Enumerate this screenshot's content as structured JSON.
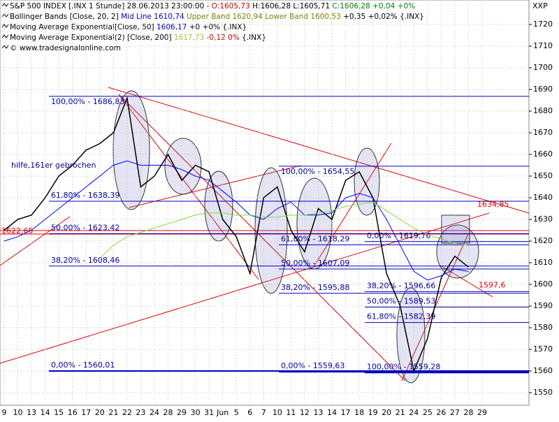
{
  "chart_data": {
    "type": "line",
    "header": [
      [
        {
          "text": "S&P 500 INDEX [.INX  1 Stunde] 28.06.2013 23:00:00 - ",
          "color": "#000000"
        },
        {
          "text": "O:1605,73",
          "color": "#c00000"
        },
        {
          "text": " H:1606,28 L:1605,71 ",
          "color": "#000000"
        },
        {
          "text": "C:1606,28 +0,04 +0%",
          "color": "#008000"
        }
      ],
      [
        {
          "text": "Bollinger Bands [Close, 20, 2] ",
          "color": "#000000"
        },
        {
          "text": "Mid Line 1610,74",
          "color": "#0000c0"
        },
        {
          "text": " Upper Band 1620,94 Lower Band 1600,53",
          "color": "#808000"
        },
        {
          "text": " +0,35 +0,02% {.INX}",
          "color": "#000000"
        }
      ],
      [
        {
          "text": "Moving Average Exponential[Close, 50] ",
          "color": "#000000"
        },
        {
          "text": "1606,17",
          "color": "#0000c0"
        },
        {
          "text": " +0 +0% {.INX}",
          "color": "#000000"
        }
      ],
      [
        {
          "text": "Moving Average Exponential(2) [Close, 200] ",
          "color": "#000000"
        },
        {
          "text": "1617,73",
          "color": "#9acd32"
        },
        {
          "text": " -0,12 0%",
          "color": "#c00000"
        },
        {
          "text": " {.INX}",
          "color": "#000000"
        }
      ],
      [
        {
          "text": "© www.tradesignalonline.com",
          "color": "#000000"
        }
      ]
    ],
    "axis_title": "XXP",
    "categories": [
      "9",
      "10",
      "13",
      "14",
      "15",
      "16",
      "17",
      "20",
      "21",
      "22",
      "23",
      "24",
      "28",
      "29",
      "30",
      "31",
      "Jun",
      "5",
      "6",
      "7",
      "10",
      "11",
      "12",
      "13",
      "14",
      "17",
      "18",
      "19",
      "20",
      "21",
      "24",
      "25",
      "26",
      "27",
      "28",
      "29"
    ],
    "series": [
      {
        "name": "S&P 500 INDEX",
        "color": "#000000",
        "values": [
          1625,
          1630,
          1632,
          1640,
          1650,
          1655,
          1662,
          1665,
          1670,
          1686,
          1645,
          1650,
          1660,
          1648,
          1655,
          1652,
          1630,
          1622,
          1605,
          1640,
          1645,
          1625,
          1615,
          1635,
          1630,
          1648,
          1652,
          1640,
          1605,
          1590,
          1560,
          1575,
          1603,
          1613,
          1608,
          null
        ]
      },
      {
        "name": "EMA 50",
        "color": "#0000ff",
        "values": [
          1620,
          1622,
          1625,
          1630,
          1635,
          1640,
          1645,
          1650,
          1655,
          1657,
          1655,
          1655,
          1655,
          1653,
          1650,
          1648,
          1643,
          1638,
          1632,
          1630,
          1635,
          1638,
          1632,
          1632,
          1633,
          1640,
          1642,
          1640,
          1630,
          1618,
          1606,
          1602,
          1604,
          1607,
          1606,
          null
        ]
      },
      {
        "name": "EMA 200",
        "color": "#7fdc3c",
        "values": [
          null,
          null,
          null,
          null,
          null,
          null,
          null,
          1612,
          1618,
          1622,
          1624,
          1626,
          1628,
          1630,
          1632,
          1633,
          1633,
          1632,
          1632,
          1631,
          1631,
          1632,
          1632,
          1633,
          1634,
          1636,
          1637,
          1638,
          1634,
          1630,
          1626,
          1623,
          1621,
          1619,
          1618,
          null
        ]
      }
    ],
    "fib_levels": [
      {
        "value": 1686.83,
        "label": "100,00% - 1686,83"
      },
      {
        "value": 1638.39,
        "label": "61,80% - 1638,39"
      },
      {
        "value": 1623.42,
        "label": "50,00% - 1623,42"
      },
      {
        "value": 1608.46,
        "label": "38,20% - 1608,46"
      },
      {
        "value": 1560.01,
        "label": "0,00% - 1560,01"
      },
      {
        "value": 1654.55,
        "label": "100,00% - 1654,55"
      },
      {
        "value": 1618.29,
        "label": "61,80% - 1618,29"
      },
      {
        "value": 1607.09,
        "label": "50,00% - 1607,09"
      },
      {
        "value": 1595.88,
        "label": "38,20% - 1595,88"
      },
      {
        "value": 1559.63,
        "label": "0,00% - 1559,63"
      },
      {
        "value": 1619.76,
        "label": "0,00% - 1619,76"
      },
      {
        "value": 1596.66,
        "label": "38,20% - 1596,66"
      },
      {
        "value": 1589.53,
        "label": "50,00% - 1589,53"
      },
      {
        "value": 1582.39,
        "label": "61,80% - 1582,39"
      },
      {
        "value": 1559.28,
        "label": "100,00% - 1559,28"
      }
    ],
    "red_levels": [
      {
        "value": 1622.65,
        "label": "1622,65"
      },
      {
        "value": 1634.85,
        "label": "1634,85"
      },
      {
        "value": 1597.6,
        "label": "1597,6"
      }
    ],
    "annotation": "hilfe,161er gebrochen",
    "ylim": [
      1544.2,
      1731.3
    ],
    "yticks": [
      1550,
      1560,
      1570,
      1580,
      1590,
      1600,
      1610,
      1620,
      1630,
      1640,
      1650,
      1660,
      1670,
      1680,
      1690,
      1700,
      1710,
      1720
    ],
    "grid": true
  }
}
